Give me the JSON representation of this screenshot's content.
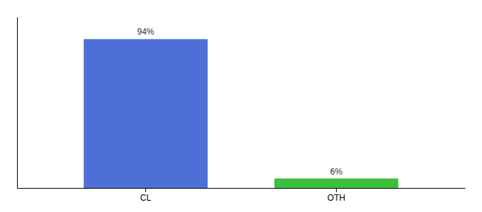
{
  "chart_data": {
    "type": "bar",
    "categories": [
      "CL",
      "OTH"
    ],
    "values": [
      94,
      6
    ],
    "value_labels": [
      "94%",
      "6%"
    ],
    "colors": [
      "#4f6fd8",
      "#3dbf3d"
    ],
    "ylim": [
      0,
      108
    ],
    "data_labels": true,
    "tick_labels": "x"
  }
}
